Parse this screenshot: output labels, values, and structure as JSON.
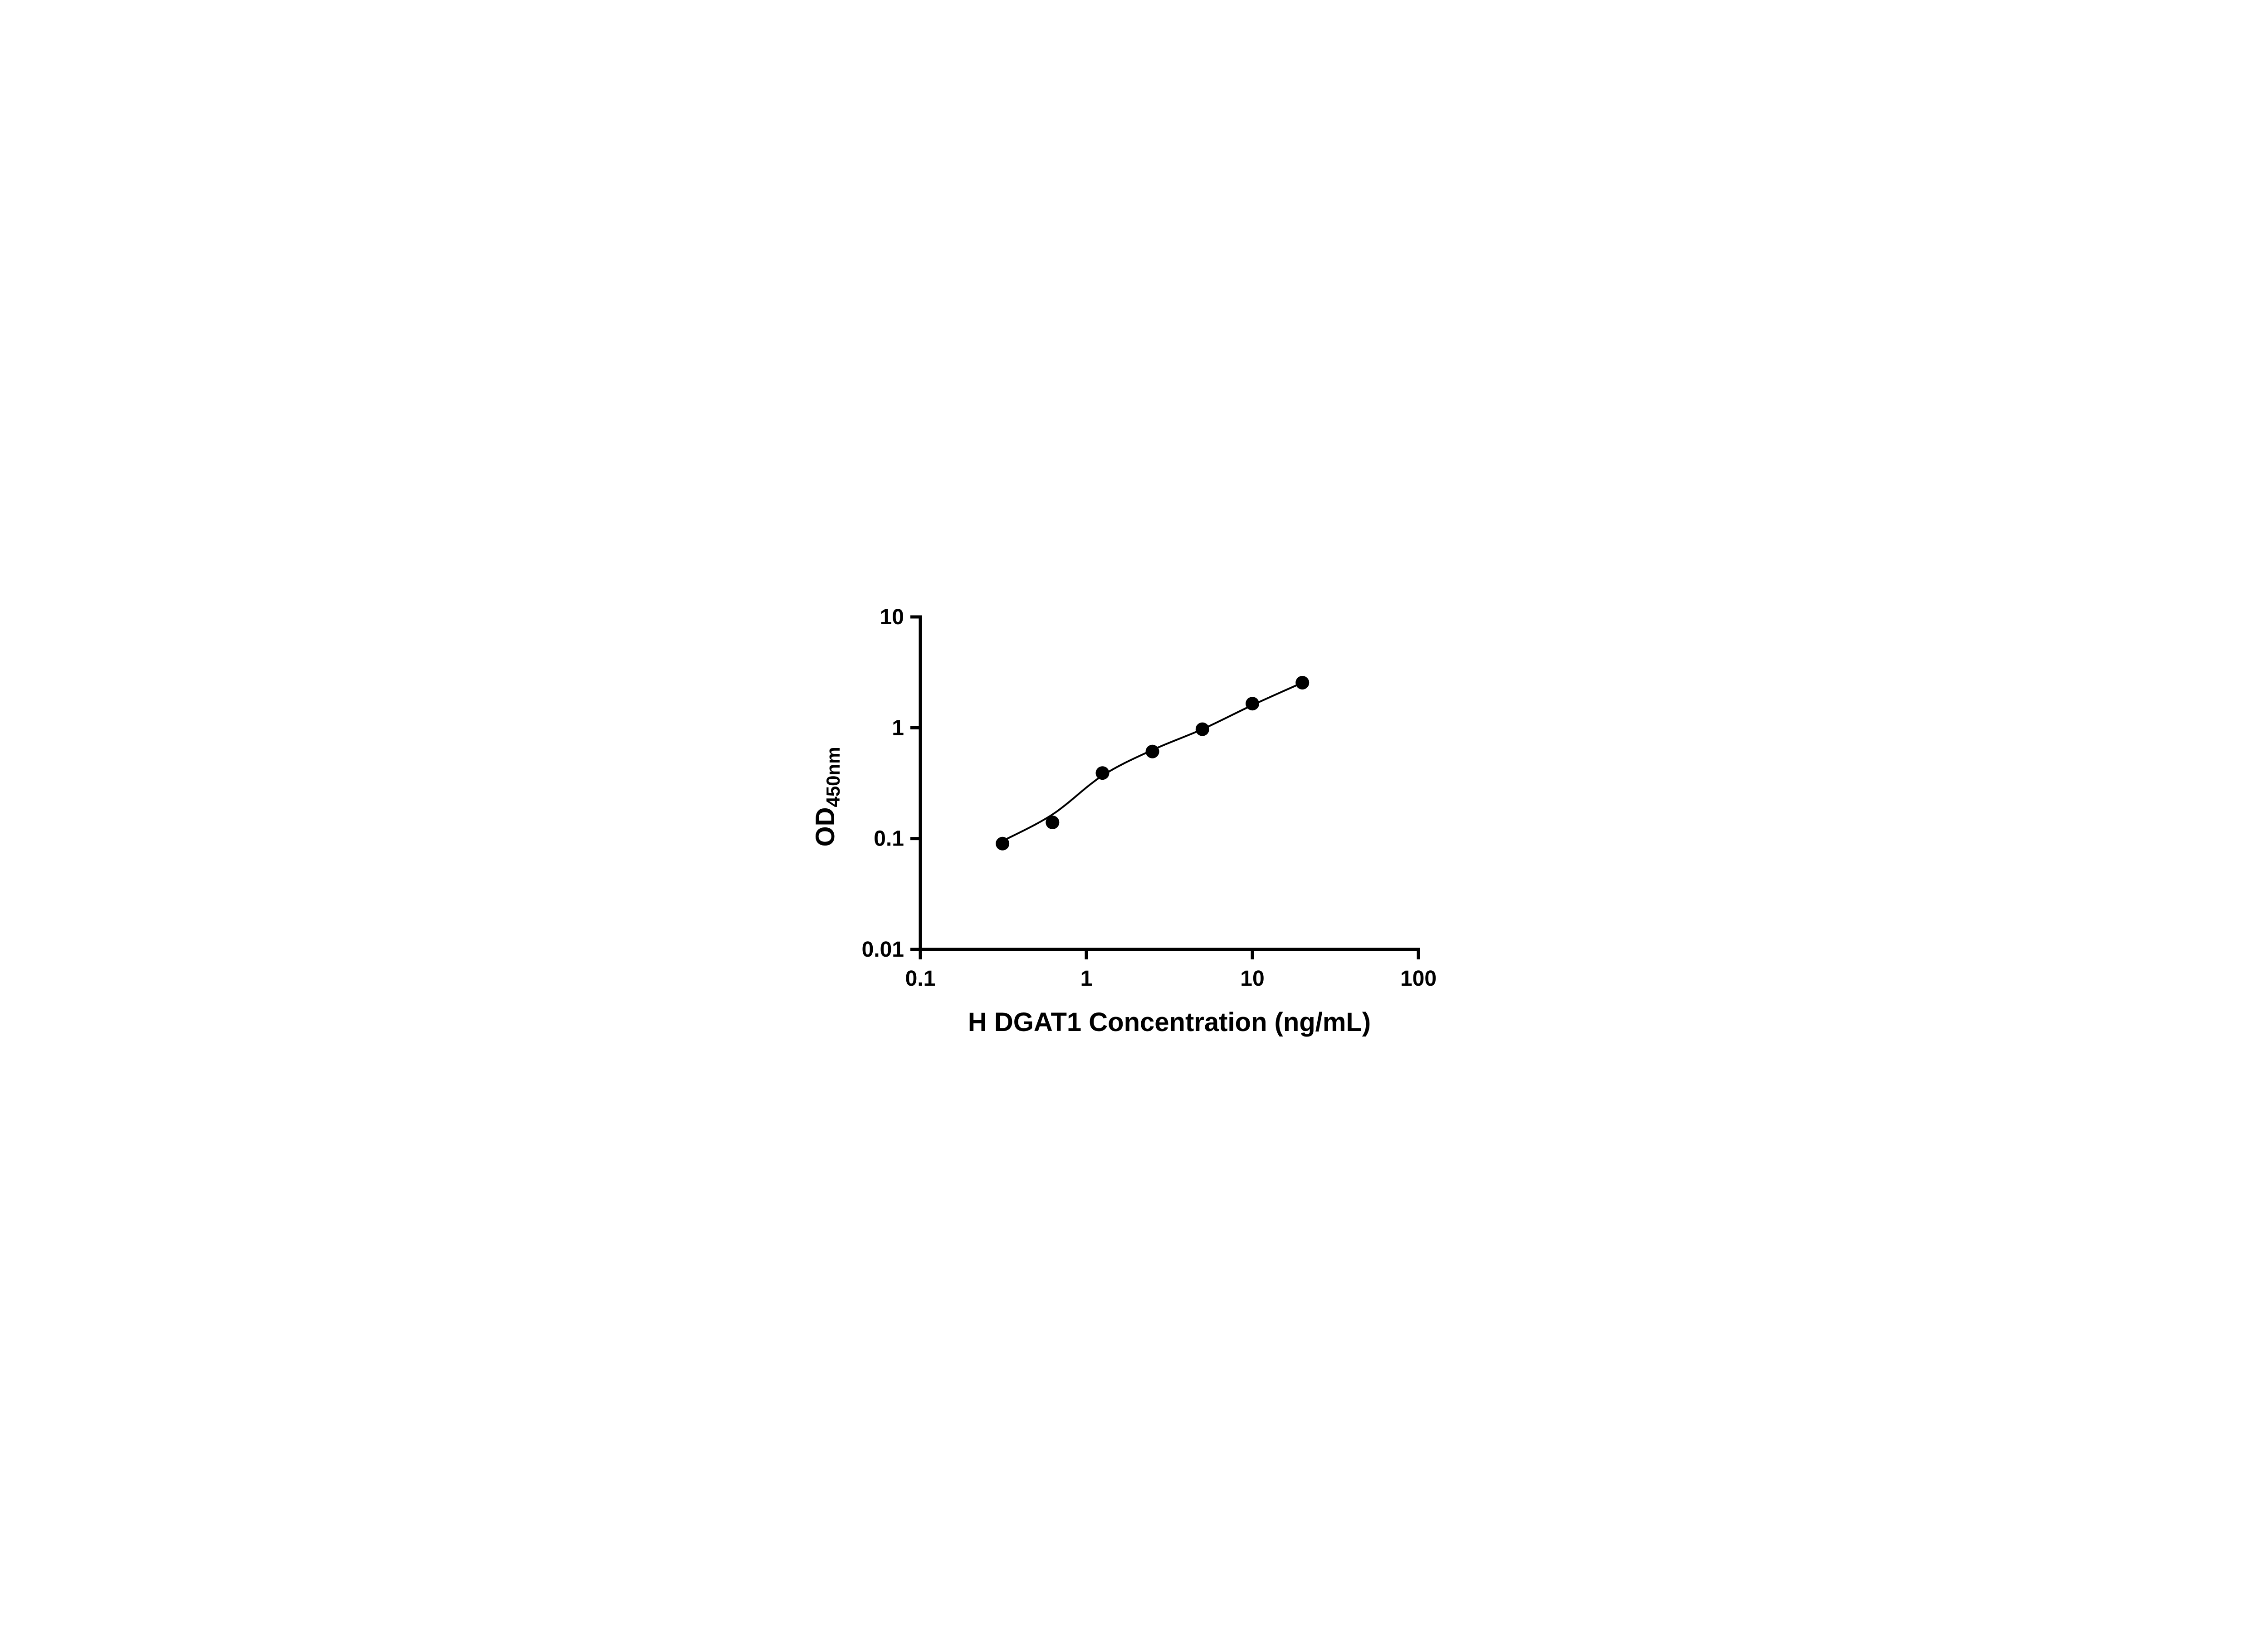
{
  "chart_data": {
    "type": "scatter",
    "title": "",
    "xlabel": "H DGAT1 Concentration (ng/mL)",
    "ylabel_main": "OD",
    "ylabel_sub": "450nm",
    "x_scale": "log",
    "y_scale": "log",
    "xlim": [
      0.1,
      100
    ],
    "ylim": [
      0.01,
      10
    ],
    "grid": false,
    "legend": "none",
    "x_ticks": [
      {
        "value": 0.1,
        "label": "0.1"
      },
      {
        "value": 1,
        "label": "1"
      },
      {
        "value": 10,
        "label": "10"
      },
      {
        "value": 100,
        "label": "100"
      }
    ],
    "y_ticks": [
      {
        "value": 0.01,
        "label": "0.01"
      },
      {
        "value": 0.1,
        "label": "0.1"
      },
      {
        "value": 1,
        "label": "1"
      },
      {
        "value": 10,
        "label": "10"
      }
    ],
    "series": [
      {
        "name": "standard-curve-points",
        "marker": "circle",
        "color": "#000000",
        "points": [
          {
            "x": 0.3125,
            "y": 0.09
          },
          {
            "x": 0.625,
            "y": 0.14
          },
          {
            "x": 1.25,
            "y": 0.39
          },
          {
            "x": 2.5,
            "y": 0.61
          },
          {
            "x": 5,
            "y": 0.97
          },
          {
            "x": 10,
            "y": 1.65
          },
          {
            "x": 20,
            "y": 2.55
          }
        ]
      }
    ],
    "trend_line": {
      "name": "fitted-curve",
      "color": "#000000",
      "points": [
        {
          "x": 0.3125,
          "y": 0.095
        },
        {
          "x": 0.625,
          "y": 0.165
        },
        {
          "x": 1.25,
          "y": 0.37
        },
        {
          "x": 2.5,
          "y": 0.63
        },
        {
          "x": 5,
          "y": 0.97
        },
        {
          "x": 10,
          "y": 1.6
        },
        {
          "x": 20,
          "y": 2.55
        }
      ]
    }
  },
  "colors": {
    "foreground": "#000000",
    "background": "#ffffff"
  }
}
